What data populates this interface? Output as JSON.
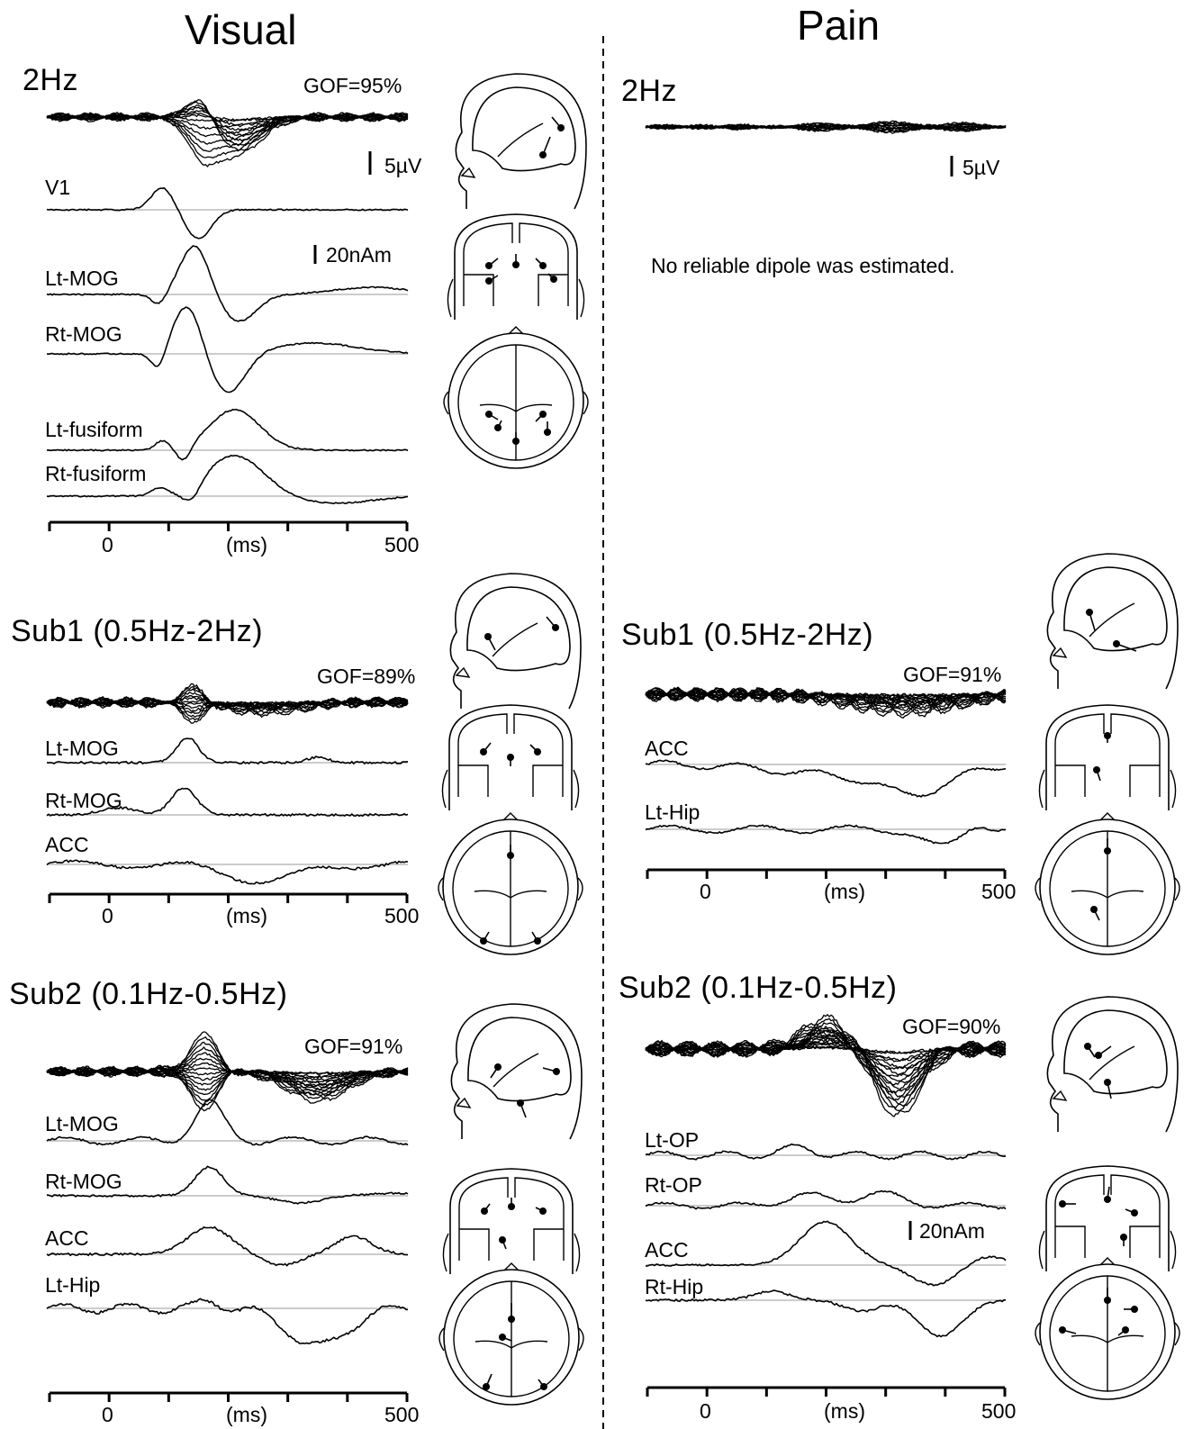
{
  "columns": [
    {
      "id": "visual",
      "title": "Visual",
      "panels": [
        {
          "title": "2Hz",
          "gof": "GOF=95%",
          "scale_voltage": "5µV",
          "scale_moment": "20nAm",
          "sources": [
            "V1",
            "Lt-MOG",
            "Rt-MOG",
            "Lt-fusiform",
            "Rt-fusiform"
          ],
          "axis": {
            "start": "0",
            "unit": "(ms)",
            "end": "500"
          }
        },
        {
          "title": "Sub1 (0.5Hz-2Hz)",
          "gof": "GOF=89%",
          "sources": [
            "Lt-MOG",
            "Rt-MOG",
            "ACC"
          ],
          "axis": {
            "start": "0",
            "unit": "(ms)",
            "end": "500"
          }
        },
        {
          "title": "Sub2 (0.1Hz-0.5Hz)",
          "gof": "GOF=91%",
          "sources": [
            "Lt-MOG",
            "Rt-MOG",
            "ACC",
            "Lt-Hip"
          ],
          "axis": {
            "start": "0",
            "unit": "(ms)",
            "end": "500"
          }
        }
      ]
    },
    {
      "id": "pain",
      "title": "Pain",
      "panels": [
        {
          "title": "2Hz",
          "scale_voltage": "5µV",
          "note": "No reliable dipole was estimated."
        },
        {
          "title": "Sub1 (0.5Hz-2Hz)",
          "gof": "GOF=91%",
          "sources": [
            "ACC",
            "Lt-Hip"
          ],
          "axis": {
            "start": "0",
            "unit": "(ms)",
            "end": "500"
          }
        },
        {
          "title": "Sub2 (0.1Hz-0.5Hz)",
          "gof": "GOF=90%",
          "scale_moment": "20nAm",
          "sources": [
            "Lt-OP",
            "Rt-OP",
            "ACC",
            "Rt-Hip"
          ],
          "axis": {
            "start": "0",
            "unit": "(ms)",
            "end": "500"
          }
        }
      ]
    }
  ],
  "colors": {
    "trace": "#000000",
    "baseline": "#bbbbbb",
    "divider": "#000000"
  }
}
